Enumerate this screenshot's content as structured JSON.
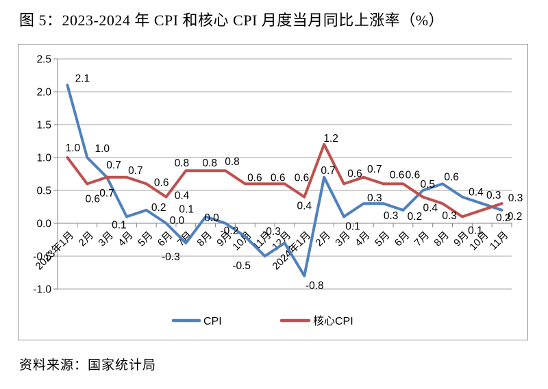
{
  "title": "图 5：2023-2024 年 CPI 和核心 CPI 月度当月同比上涨率（%）",
  "source": "资料来源：国家统计局",
  "colors": {
    "cpi_line": "#4F81BD",
    "core_cpi_line": "#C0504D",
    "gridline": "#a3a3a3",
    "axis": "#808080",
    "label_text": "#000000",
    "border": "#8f8f8f"
  },
  "chart_data": {
    "type": "line",
    "title": "图 5：2023-2024 年 CPI 和核心 CPI 月度当月同比上涨率（%）",
    "xlabel": "",
    "ylabel": "",
    "ylim": [
      -1.0,
      2.5
    ],
    "y_tick_step": 0.5,
    "y_tick_labels": [
      "2.5",
      "2.0",
      "1.5",
      "1.0",
      "0.5",
      "0.0",
      "-0.5",
      "-1.0"
    ],
    "grid": true,
    "legend_position": "bottom",
    "categories": [
      "2023年1月",
      "2月",
      "3月",
      "4月",
      "5月",
      "6月",
      "7月",
      "8月",
      "9月",
      "10月",
      "11月",
      "12月",
      "2024年1月",
      "2月",
      "3月",
      "4月",
      "5月",
      "6月",
      "7月",
      "8月",
      "9月",
      "10月",
      "11月"
    ],
    "series": [
      {
        "name": "CPI",
        "color": "#4F81BD",
        "values": [
          2.1,
          1.0,
          0.7,
          0.1,
          0.2,
          0.0,
          -0.3,
          0.1,
          0.0,
          -0.2,
          -0.5,
          -0.3,
          -0.8,
          0.7,
          0.1,
          0.3,
          0.3,
          0.2,
          0.5,
          0.6,
          0.4,
          0.3,
          0.2
        ],
        "label_offsets": [
          [
            22,
            -10
          ],
          [
            22,
            -13
          ],
          [
            0,
            23
          ],
          [
            -11,
            12
          ],
          [
            18,
            -4
          ],
          [
            16,
            -4
          ],
          [
            -22,
            20
          ],
          [
            -28,
            -11
          ],
          [
            -20,
            -8
          ],
          [
            -23,
            -8
          ],
          [
            -34,
            14
          ],
          [
            -19,
            -17
          ],
          [
            15,
            14
          ],
          [
            6,
            -10
          ],
          [
            13,
            14
          ],
          [
            16,
            -8
          ],
          [
            11,
            18
          ],
          [
            17,
            9
          ],
          [
            7,
            -9
          ],
          [
            13,
            -10
          ],
          [
            20,
            -7
          ],
          [
            17,
            -12
          ],
          [
            19,
            9
          ]
        ]
      },
      {
        "name": "核心CPI",
        "color": "#C0504D",
        "values": [
          1.0,
          0.6,
          0.7,
          0.7,
          0.6,
          0.4,
          0.8,
          0.8,
          0.8,
          0.6,
          0.6,
          0.6,
          0.4,
          1.2,
          0.6,
          0.7,
          0.6,
          0.6,
          0.4,
          0.3,
          0.1,
          0.2,
          0.3
        ],
        "label_offsets": [
          [
            8,
            -14
          ],
          [
            8,
            22
          ],
          [
            10,
            -18
          ],
          [
            13,
            -10
          ],
          [
            22,
            -2
          ],
          [
            23,
            -2
          ],
          [
            -6,
            -11
          ],
          [
            6,
            -11
          ],
          [
            10,
            -13
          ],
          [
            14,
            -9
          ],
          [
            19,
            -9
          ],
          [
            25,
            -9
          ],
          [
            0,
            13
          ],
          [
            10,
            -9
          ],
          [
            16,
            -15
          ],
          [
            16,
            -12
          ],
          [
            20,
            -13
          ],
          [
            14,
            -13
          ],
          [
            11,
            16
          ],
          [
            10,
            18
          ],
          [
            19,
            20
          ],
          [
            31,
            11
          ],
          [
            20,
            -8
          ]
        ]
      }
    ]
  }
}
